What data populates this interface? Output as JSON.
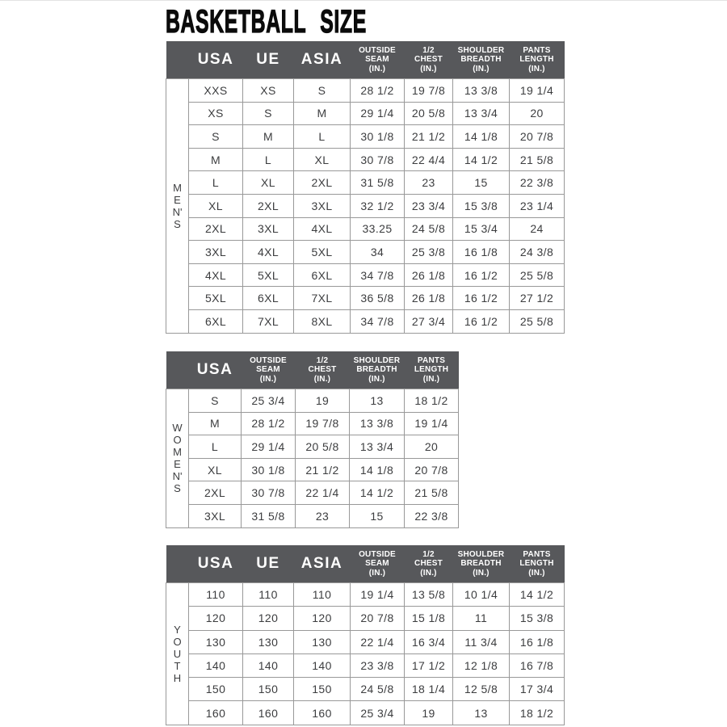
{
  "title": "BASKETBALL SIZE",
  "colors": {
    "header_bg": "#57585B",
    "header_text": "#FFFFFF",
    "body_text": "#3C3D3F",
    "border": "#999999",
    "title": "#0B0B0B",
    "background": "#FFFFFF"
  },
  "tables": [
    {
      "name": "mens",
      "section_label": "MEN'S",
      "section_label_lines": [
        "M",
        "E",
        "N'",
        "S"
      ],
      "columns": [
        {
          "label": "USA",
          "big": true
        },
        {
          "label": "UE",
          "big": true
        },
        {
          "label": "ASIA",
          "big": true
        },
        {
          "label": "OUTSIDE SEAM (IN.)",
          "lines": [
            "OUTSIDE",
            "SEAM",
            "(IN.)"
          ]
        },
        {
          "label": "1/2 CHEST (IN.)",
          "lines": [
            "1/2",
            "CHEST",
            "(IN.)"
          ]
        },
        {
          "label": "SHOULDER BREADTH (IN.)",
          "lines": [
            "SHOULDER",
            "BREADTH",
            "(IN.)"
          ]
        },
        {
          "label": "PANTS LENGTH (IN.)",
          "lines": [
            "PANTS",
            "LENGTH",
            "(IN.)"
          ]
        }
      ],
      "rows": [
        [
          "XXS",
          "XS",
          "S",
          "28 1/2",
          "19 7/8",
          "13 3/8",
          "19 1/4"
        ],
        [
          "XS",
          "S",
          "M",
          "29 1/4",
          "20 5/8",
          "13 3/4",
          "20"
        ],
        [
          "S",
          "M",
          "L",
          "30 1/8",
          "21 1/2",
          "14 1/8",
          "20 7/8"
        ],
        [
          "M",
          "L",
          "XL",
          "30 7/8",
          "22 4/4",
          "14 1/2",
          "21 5/8"
        ],
        [
          "L",
          "XL",
          "2XL",
          "31 5/8",
          "23",
          "15",
          "22 3/8"
        ],
        [
          "XL",
          "2XL",
          "3XL",
          "32 1/2",
          "23 3/4",
          "15 3/8",
          "23 1/4"
        ],
        [
          "2XL",
          "3XL",
          "4XL",
          "33.25",
          "24 5/8",
          "15 3/4",
          "24"
        ],
        [
          "3XL",
          "4XL",
          "5XL",
          "34",
          "25 3/8",
          "16 1/8",
          "24 3/8"
        ],
        [
          "4XL",
          "5XL",
          "6XL",
          "34 7/8",
          "26 1/8",
          "16 1/2",
          "25 5/8"
        ],
        [
          "5XL",
          "6XL",
          "7XL",
          "36 5/8",
          "26 1/8",
          "16 1/2",
          "27 1/2"
        ],
        [
          "6XL",
          "7XL",
          "8XL",
          "34 7/8",
          "27 3/4",
          "16 1/2",
          "25 5/8"
        ]
      ]
    },
    {
      "name": "womens",
      "section_label": "WOMEN'S",
      "section_label_lines": [
        "W",
        "O",
        "M",
        "E",
        "N'",
        "S"
      ],
      "columns": [
        {
          "label": "USA",
          "big": true
        },
        {
          "label": "OUTSIDE SEAM (IN.)",
          "lines": [
            "OUTSIDE",
            "SEAM",
            "(IN.)"
          ]
        },
        {
          "label": "1/2 CHEST (IN.)",
          "lines": [
            "1/2",
            "CHEST",
            "(IN.)"
          ]
        },
        {
          "label": "SHOULDER BREADTH (IN.)",
          "lines": [
            "SHOULDER",
            "BREADTH",
            "(IN.)"
          ]
        },
        {
          "label": "PANTS LENGTH (IN.)",
          "lines": [
            "PANTS",
            "LENGTH",
            "(IN.)"
          ]
        }
      ],
      "rows": [
        [
          "S",
          "25 3/4",
          "19",
          "13",
          "18 1/2"
        ],
        [
          "M",
          "28 1/2",
          "19 7/8",
          "13 3/8",
          "19 1/4"
        ],
        [
          "L",
          "29 1/4",
          "20 5/8",
          "13 3/4",
          "20"
        ],
        [
          "XL",
          "30 1/8",
          "21 1/2",
          "14 1/8",
          "20 7/8"
        ],
        [
          "2XL",
          "30 7/8",
          "22 1/4",
          "14 1/2",
          "21 5/8"
        ],
        [
          "3XL",
          "31 5/8",
          "23",
          "15",
          "22 3/8"
        ]
      ]
    },
    {
      "name": "youth",
      "section_label": "YOUTH",
      "section_label_lines": [
        "Y",
        "O",
        "U",
        "T",
        "H"
      ],
      "columns": [
        {
          "label": "USA",
          "big": true
        },
        {
          "label": "UE",
          "big": true
        },
        {
          "label": "ASIA",
          "big": true
        },
        {
          "label": "OUTSIDE SEAM (IN.)",
          "lines": [
            "OUTSIDE",
            "SEAM",
            "(IN.)"
          ]
        },
        {
          "label": "1/2 CHEST (IN.)",
          "lines": [
            "1/2",
            "CHEST",
            "(IN.)"
          ]
        },
        {
          "label": "SHOULDER BREADTH (IN.)",
          "lines": [
            "SHOULDER",
            "BREADTH",
            "(IN.)"
          ]
        },
        {
          "label": "PANTS LENGTH (IN.)",
          "lines": [
            "PANTS",
            "LENGTH",
            "(IN.)"
          ]
        }
      ],
      "rows": [
        [
          "110",
          "110",
          "110",
          "19 1/4",
          "13 5/8",
          "10 1/4",
          "14 1/2"
        ],
        [
          "120",
          "120",
          "120",
          "20 7/8",
          "15 1/8",
          "11",
          "15 3/8"
        ],
        [
          "130",
          "130",
          "130",
          "22 1/4",
          "16 3/4",
          "11 3/4",
          "16 1/8"
        ],
        [
          "140",
          "140",
          "140",
          "23 3/8",
          "17 1/2",
          "12 1/8",
          "16 7/8"
        ],
        [
          "150",
          "150",
          "150",
          "24 5/8",
          "18 1/4",
          "12 5/8",
          "17 3/4"
        ],
        [
          "160",
          "160",
          "160",
          "25 3/4",
          "19",
          "13",
          "18 1/2"
        ]
      ]
    }
  ]
}
